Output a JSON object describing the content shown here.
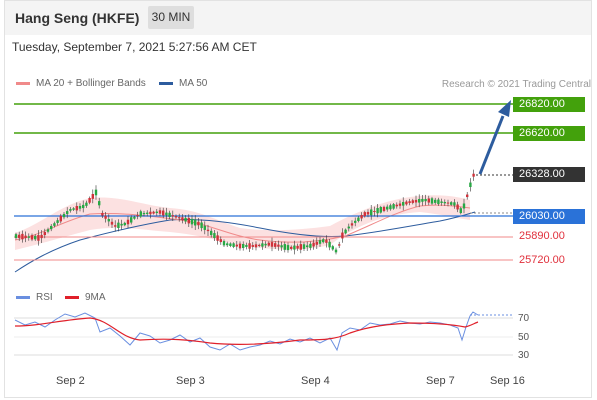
{
  "header": {
    "title": "Hang Seng (HKFE)",
    "interval": "30 MIN"
  },
  "datetime": "Tuesday, September 7, 2021 5:27:56 AM CET",
  "legend": {
    "ma20": {
      "label": "MA 20 + Bollinger Bands",
      "color": "#f08a8a"
    },
    "ma50": {
      "label": "MA 50",
      "color": "#2d5c9e"
    },
    "copyright": "Research © 2021 Trading Central"
  },
  "levels": [
    {
      "value": "26820.00",
      "kind": "resistance",
      "color": "#43a10c"
    },
    {
      "value": "26620.00",
      "kind": "resistance",
      "color": "#43a10c"
    },
    {
      "value": "26328.00",
      "kind": "last-price",
      "color": "#333333"
    },
    {
      "value": "26030.00",
      "kind": "pivot",
      "color": "#2a72d8"
    },
    {
      "value": "25890.00",
      "kind": "support",
      "color": "#e0303c"
    },
    {
      "value": "25720.00",
      "kind": "support",
      "color": "#e0303c"
    }
  ],
  "rsi": {
    "legend_rsi": "RSI",
    "legend_9ma": "9MA",
    "rsi_color": "#6a8fe0",
    "ma_color": "#e0202a",
    "levels": [
      "70",
      "50",
      "30"
    ]
  },
  "xaxis": [
    "Sep 2",
    "Sep 3",
    "Sep 4",
    "Sep 7",
    "Sep 16"
  ]
}
